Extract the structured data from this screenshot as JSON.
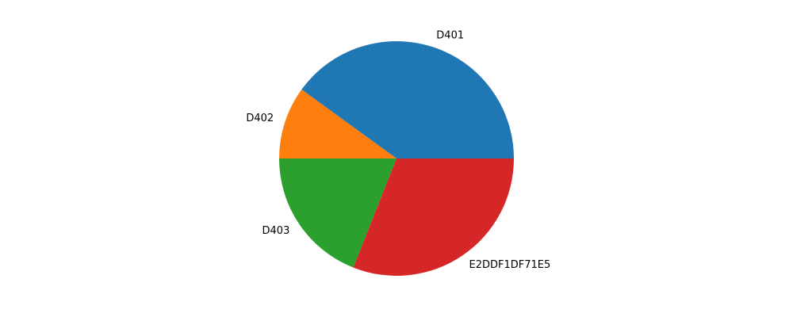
{
  "chart_data": {
    "type": "pie",
    "categories": [
      "D401",
      "D402",
      "D403",
      "E2DDF1DF71E5"
    ],
    "values": [
      40,
      10,
      19,
      31
    ],
    "colors": [
      "#1f77b4",
      "#ff7f0e",
      "#2ca02c",
      "#d62728"
    ],
    "start_angle": 0,
    "direction": "counterclockwise",
    "legend": "none"
  }
}
